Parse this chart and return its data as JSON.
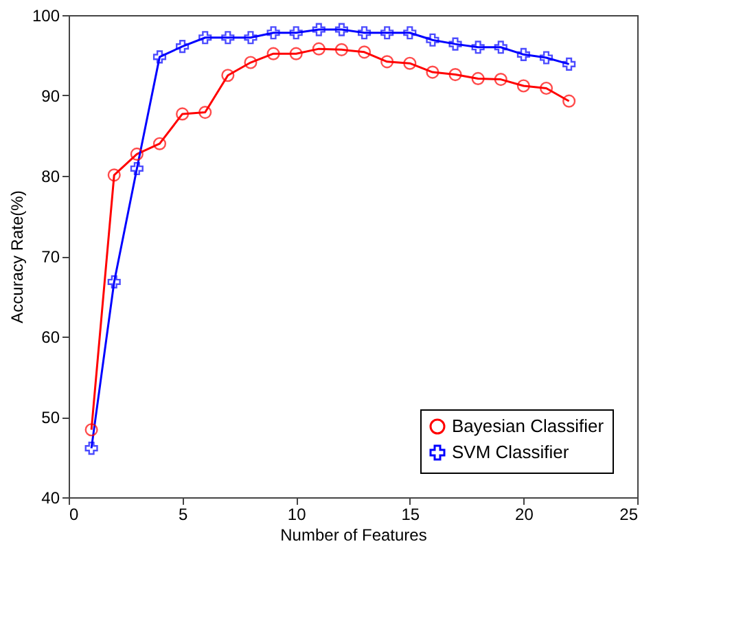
{
  "chart_data": {
    "type": "line",
    "xlabel": "Number of Features",
    "ylabel": "Accuracy Rate(%)",
    "x": [
      1,
      2,
      3,
      4,
      5,
      6,
      7,
      8,
      9,
      10,
      11,
      12,
      13,
      14,
      15,
      16,
      17,
      18,
      19,
      20,
      21,
      22
    ],
    "xlim": [
      0,
      25
    ],
    "xticks": [
      0,
      5,
      10,
      15,
      20,
      25
    ],
    "ylim": [
      40,
      100
    ],
    "yticks": [
      40,
      50,
      60,
      70,
      80,
      90,
      100
    ],
    "grid": false,
    "legend": "bottom right",
    "line_style": "solid",
    "series": [
      {
        "name": "Bayesian Classifier",
        "color": "#ff0000",
        "marker": "circle",
        "values": [
          48.4,
          80.1,
          82.7,
          84.0,
          87.7,
          87.9,
          92.5,
          94.1,
          95.2,
          95.2,
          95.8,
          95.7,
          95.4,
          94.2,
          94.0,
          92.9,
          92.6,
          92.1,
          92.0,
          91.2,
          90.9,
          89.3
        ]
      },
      {
        "name": "SVM Classifier",
        "color": "#0000ff",
        "marker": "cross",
        "values": [
          46.1,
          66.8,
          80.9,
          94.8,
          96.1,
          97.2,
          97.2,
          97.2,
          97.8,
          97.8,
          98.2,
          98.2,
          97.8,
          97.8,
          97.8,
          96.9,
          96.4,
          96.0,
          96.0,
          95.1,
          94.7,
          93.9
        ]
      }
    ]
  }
}
